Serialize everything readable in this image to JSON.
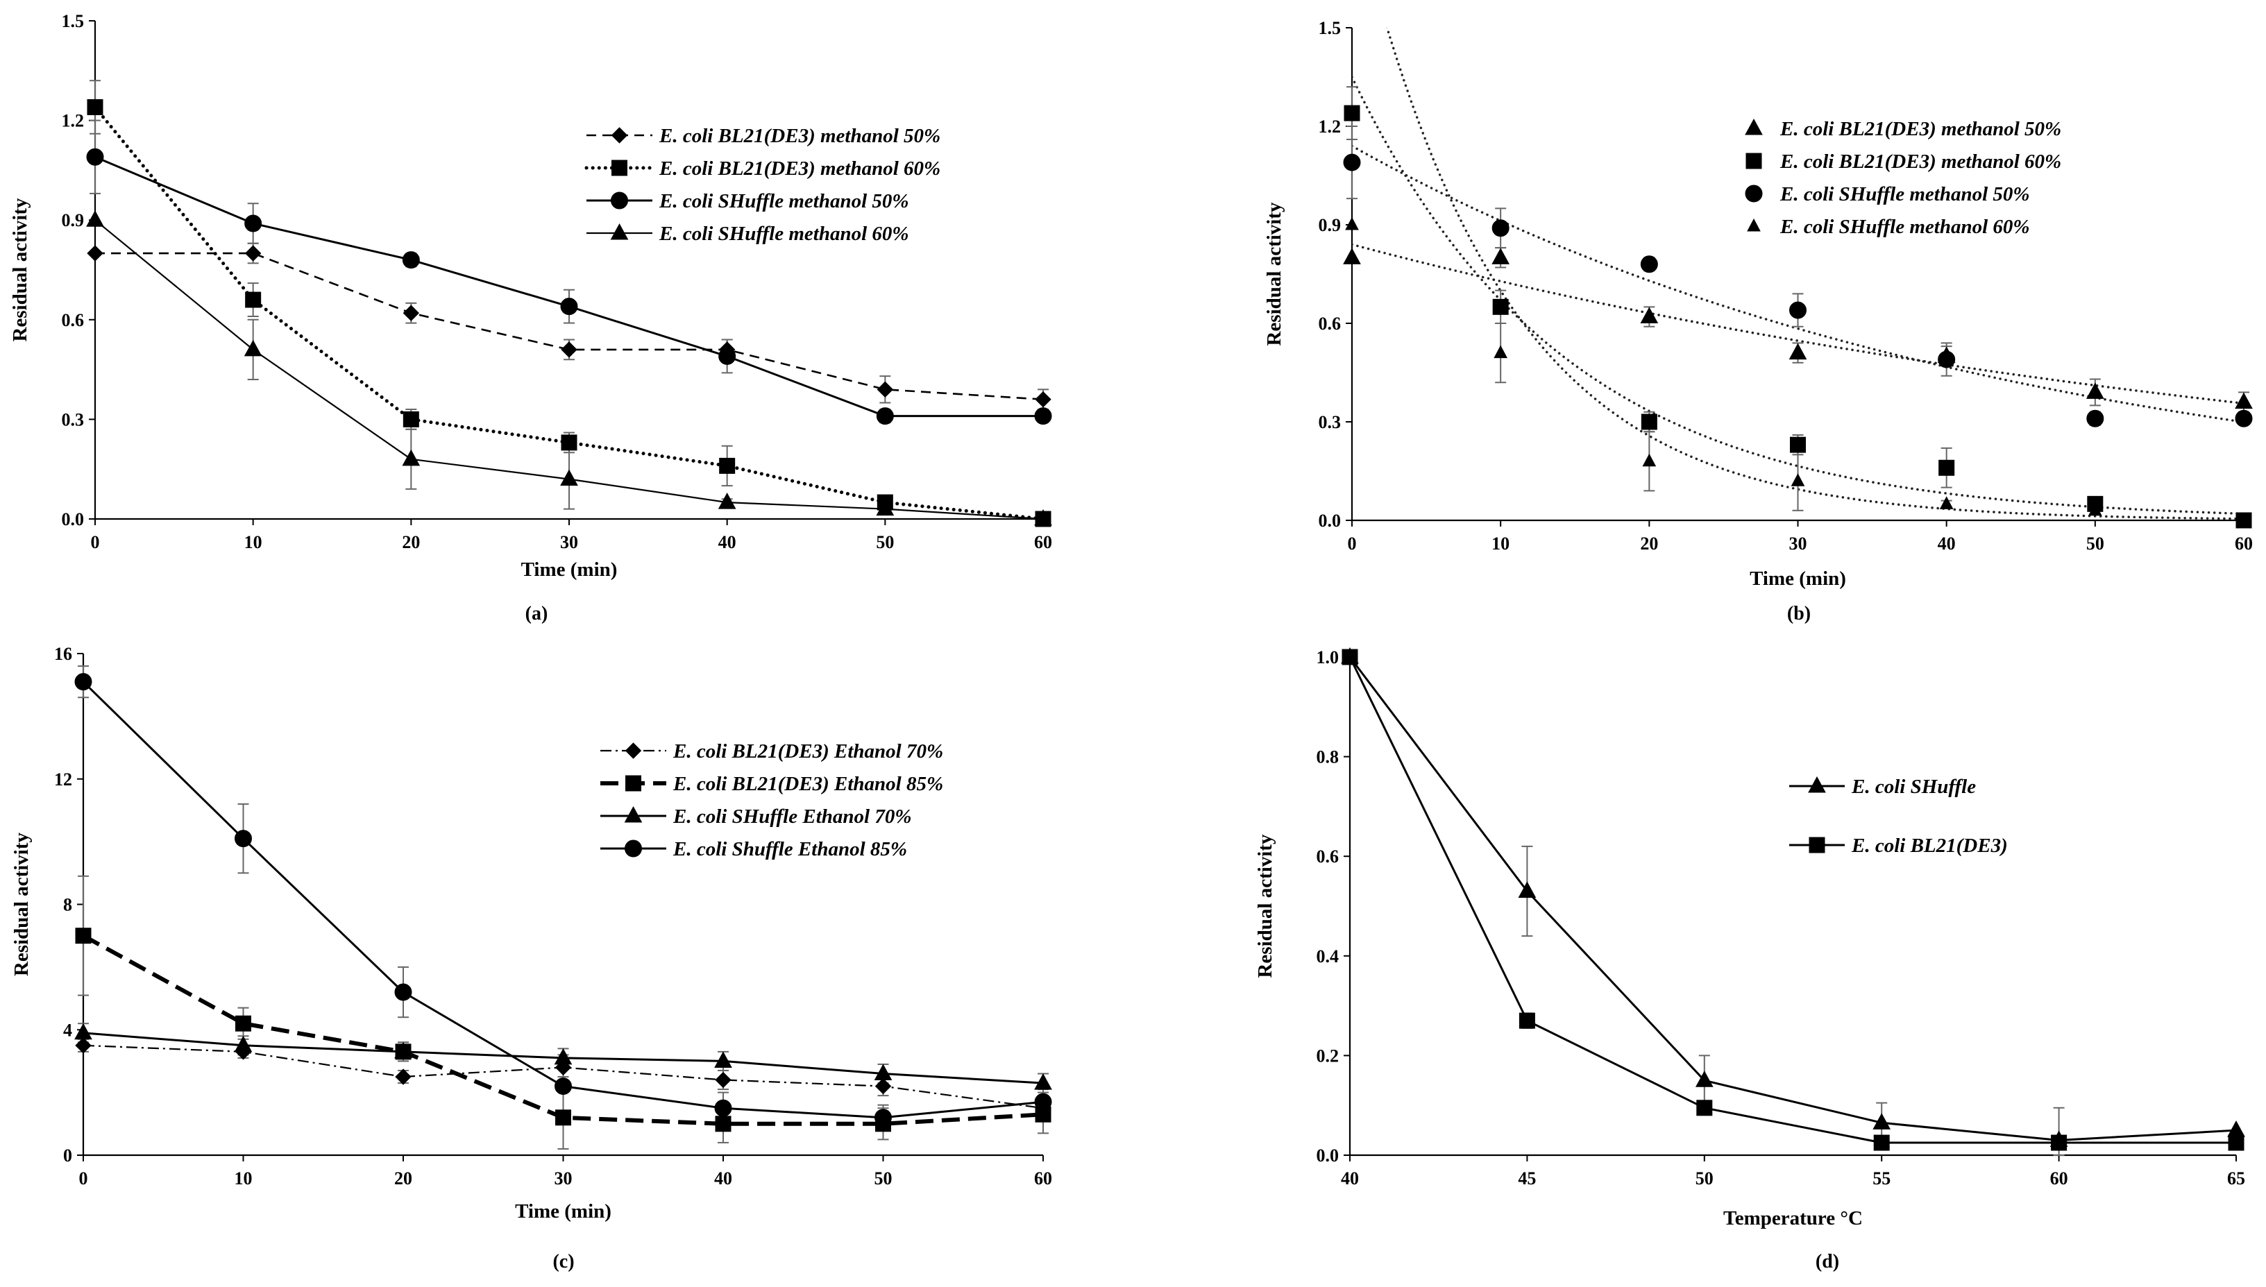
{
  "chart_data": [
    {
      "id": "a",
      "type": "line",
      "panel_label": "(a)",
      "xlabel": "Time (min)",
      "ylabel": "Residual activity",
      "xlim": [
        0,
        60
      ],
      "ylim": [
        0,
        1.5
      ],
      "xticks": [
        0,
        10,
        20,
        30,
        40,
        50,
        60
      ],
      "yticks": [
        0.0,
        0.3,
        0.6,
        0.9,
        1.2,
        1.5
      ],
      "ytick_decimals": 1,
      "legend_position": "top-right",
      "x": [
        0,
        10,
        20,
        30,
        40,
        50,
        60
      ],
      "series": [
        {
          "name": "E. coli BL21(DE3) methanol 50%",
          "marker": "diamond",
          "line": "dash",
          "values": [
            0.8,
            0.8,
            0.62,
            0.51,
            0.51,
            0.39,
            0.36
          ],
          "errors": [
            0,
            0.03,
            0.03,
            0.03,
            0.03,
            0.04,
            0.03
          ]
        },
        {
          "name": "E. coli BL21(DE3) methanol 60%",
          "marker": "square",
          "line": "dot",
          "values": [
            1.24,
            0.66,
            0.3,
            0.23,
            0.16,
            0.05,
            0.0
          ],
          "errors": [
            0.08,
            0.05,
            0.03,
            0.03,
            0.06,
            0.02,
            0.01
          ]
        },
        {
          "name": "E. coli SHuffle methanol 50%",
          "marker": "circle",
          "line": "solid",
          "values": [
            1.09,
            0.89,
            0.78,
            0.64,
            0.49,
            0.31,
            0.31
          ],
          "errors": [
            0.11,
            0.06,
            0.02,
            0.05,
            0.05,
            0.02,
            0.0
          ]
        },
        {
          "name": "E. coli SHuffle methanol 60%",
          "marker": "triangle",
          "line": "thin",
          "values": [
            0.9,
            0.51,
            0.18,
            0.12,
            0.05,
            0.03,
            0.0
          ],
          "errors": [
            0.0,
            0.09,
            0.09,
            0.09,
            0.01,
            0.01,
            0.0
          ]
        }
      ]
    },
    {
      "id": "b",
      "type": "scatter",
      "panel_label": "(b)",
      "xlabel": "Time (min)",
      "ylabel": "Residual activity",
      "xlim": [
        0,
        60
      ],
      "ylim": [
        0,
        1.5
      ],
      "xticks": [
        0,
        10,
        20,
        30,
        40,
        50,
        60
      ],
      "yticks": [
        0.0,
        0.3,
        0.6,
        0.9,
        1.2,
        1.5
      ],
      "ytick_decimals": 1,
      "legend_position": "top-right",
      "trendlines": "exponential (dotted)",
      "x": [
        0,
        10,
        20,
        30,
        40,
        50,
        60
      ],
      "series": [
        {
          "name": "E. coli BL21(DE3) methanol 50%",
          "marker": "triangle",
          "values": [
            0.8,
            0.8,
            0.62,
            0.51,
            0.5,
            0.39,
            0.36
          ],
          "errors": [
            0,
            0.03,
            0.03,
            0.03,
            0.03,
            0.04,
            0.03
          ],
          "trend": [
            0.84,
            -0.0143
          ]
        },
        {
          "name": "E. coli BL21(DE3) methanol 60%",
          "marker": "square",
          "values": [
            1.24,
            0.65,
            0.3,
            0.23,
            0.16,
            0.05,
            0.0
          ],
          "errors": [
            0.08,
            0.05,
            0.03,
            0.03,
            0.06,
            0.02,
            0.01
          ],
          "trend": [
            1.35,
            -0.07
          ]
        },
        {
          "name": "E. coli SHuffle methanol 50%",
          "marker": "circle",
          "values": [
            1.09,
            0.89,
            0.78,
            0.64,
            0.49,
            0.31,
            0.31
          ],
          "errors": [
            0.11,
            0.06,
            0.02,
            0.05,
            0.05,
            0.02,
            0.0
          ],
          "trend": [
            1.14,
            -0.0223
          ]
        },
        {
          "name": "E. coli SHuffle methanol 60%",
          "marker": "triangle-small",
          "values": [
            0.9,
            0.51,
            0.18,
            0.12,
            0.05,
            0.03,
            0.0
          ],
          "errors": [
            0.0,
            0.09,
            0.09,
            0.09,
            0.01,
            0.01,
            0.0
          ],
          "trend": [
            1.9,
            -0.1
          ]
        }
      ]
    },
    {
      "id": "c",
      "type": "line",
      "panel_label": "(c)",
      "xlabel": "Time (min)",
      "ylabel": "Residual activity",
      "xlim": [
        0,
        60
      ],
      "ylim": [
        0,
        16
      ],
      "xticks": [
        0,
        10,
        20,
        30,
        40,
        50,
        60
      ],
      "yticks": [
        0,
        4,
        8,
        12,
        16
      ],
      "ytick_decimals": 0,
      "legend_position": "center-right",
      "x": [
        0,
        10,
        20,
        30,
        40,
        50,
        60
      ],
      "series": [
        {
          "name": "E. coli   BL21(DE3) Ethanol 70%",
          "marker": "diamond",
          "line": "dashdot",
          "values": [
            3.5,
            3.3,
            2.5,
            2.8,
            2.4,
            2.2,
            1.5
          ],
          "errors": [
            0.2,
            0.2,
            0.2,
            0.3,
            0.3,
            0.3,
            0.4
          ]
        },
        {
          "name": "E. coli BL21(DE3) Ethanol 85%",
          "marker": "square",
          "line": "thickdash",
          "values": [
            7.0,
            4.2,
            3.3,
            1.2,
            1.0,
            1.0,
            1.3
          ],
          "errors": [
            1.9,
            0.5,
            0.3,
            1.0,
            0.6,
            0.5,
            0.6
          ]
        },
        {
          "name": "E. coli SHuffle Ethanol 70%",
          "marker": "triangle",
          "line": "solid",
          "values": [
            3.9,
            3.5,
            3.3,
            3.1,
            3.0,
            2.6,
            2.3
          ],
          "errors": [
            0.3,
            0.3,
            0.3,
            0.3,
            0.3,
            0.3,
            0.3
          ]
        },
        {
          "name": "E. coli Shuffle Ethanol 85%",
          "marker": "circle",
          "line": "solid",
          "values": [
            15.1,
            10.1,
            5.2,
            2.2,
            1.5,
            1.2,
            1.7
          ],
          "errors": [
            0.5,
            1.1,
            0.8,
            1.0,
            0.5,
            0.4,
            0.4
          ]
        }
      ]
    },
    {
      "id": "d",
      "type": "line",
      "panel_label": "(d)",
      "xlabel": "Temperature °C",
      "ylabel": "Residual activity",
      "xlim": [
        40,
        65
      ],
      "ylim": [
        0,
        1.0
      ],
      "xticks": [
        40,
        45,
        50,
        55,
        60,
        65
      ],
      "yticks": [
        0.0,
        0.2,
        0.4,
        0.6,
        0.8,
        1.0
      ],
      "ytick_decimals": 1,
      "legend_position": "center-right",
      "x": [
        40,
        45,
        50,
        55,
        60,
        65
      ],
      "series": [
        {
          "name": "E. coli SHuffle",
          "marker": "triangle",
          "line": "solid",
          "values": [
            1.0,
            0.53,
            0.15,
            0.065,
            0.03,
            0.05
          ],
          "errors": [
            0,
            0.09,
            0.05,
            0.04,
            0.065,
            0
          ]
        },
        {
          "name": "E. coli BL21(DE3)",
          "marker": "square",
          "line": "solid",
          "values": [
            1.0,
            0.27,
            0.095,
            0.025,
            0.025,
            0.025
          ],
          "errors": [
            0,
            0.015,
            0.01,
            0,
            0,
            0
          ]
        }
      ]
    }
  ]
}
